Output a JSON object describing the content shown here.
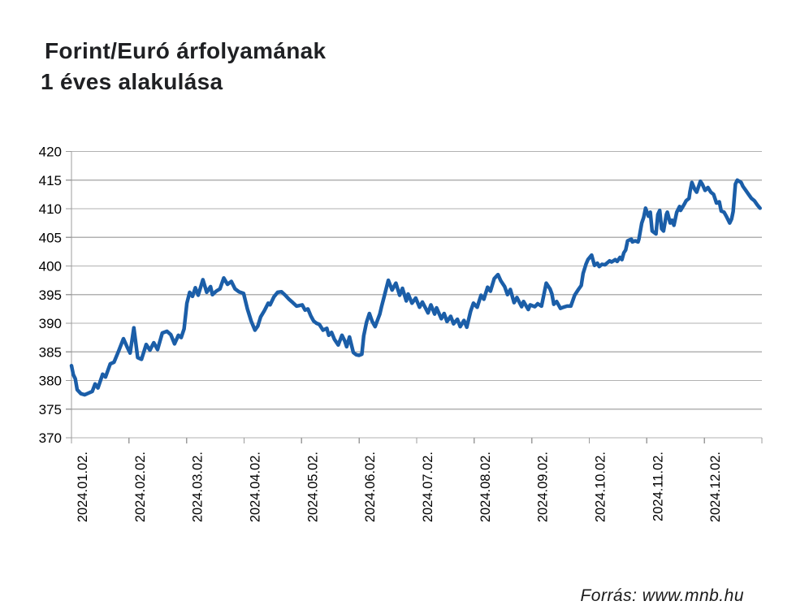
{
  "header": {
    "title_line1": "Forint/Euró árfolyamának",
    "title_line2": "1 éves alakulása"
  },
  "footer": {
    "source": "Forrás: www.mnb.hu"
  },
  "chart_data": {
    "type": "line",
    "title": "Forint/Euró árfolyamának 1 éves alakulása",
    "xlabel": "",
    "ylabel": "",
    "ylim": [
      370,
      420
    ],
    "y_ticks": [
      370,
      375,
      380,
      385,
      390,
      395,
      400,
      405,
      410,
      415,
      420
    ],
    "x_tick_labels": [
      "2024.01.02.",
      "2024.02.02.",
      "2024.03.02.",
      "2024.04.02.",
      "2024.05.02.",
      "2024.06.02.",
      "2024.07.02.",
      "2024.08.02.",
      "2024.09.02.",
      "2024.10.02.",
      "2024.11.02.",
      "2024.12.02."
    ],
    "x_range_days": [
      0,
      365
    ],
    "grid": "horizontal",
    "legend": "none",
    "line_color": "#1b5ea8",
    "grid_color": "#b2b2b2",
    "axis_color": "#9c9c9c",
    "tick_label_color": "#000000",
    "series": [
      {
        "points": [
          [
            0,
            382.6
          ],
          [
            1,
            381.0
          ],
          [
            2,
            380.3
          ],
          [
            3,
            378.4
          ],
          [
            5,
            377.7
          ],
          [
            7,
            377.5
          ],
          [
            9,
            377.8
          ],
          [
            11,
            378.1
          ],
          [
            12.5,
            379.4
          ],
          [
            14,
            378.7
          ],
          [
            16.5,
            381.1
          ],
          [
            18,
            380.6
          ],
          [
            20.5,
            382.9
          ],
          [
            22.5,
            383.2
          ],
          [
            25,
            385.2
          ],
          [
            27.5,
            387.3
          ],
          [
            29.5,
            385.8
          ],
          [
            31,
            384.8
          ],
          [
            33,
            389.2
          ],
          [
            35,
            384.0
          ],
          [
            37,
            383.7
          ],
          [
            39.5,
            386.3
          ],
          [
            41.5,
            385.3
          ],
          [
            43.5,
            386.6
          ],
          [
            45.5,
            385.4
          ],
          [
            48,
            388.3
          ],
          [
            50.5,
            388.6
          ],
          [
            52.5,
            388.0
          ],
          [
            54.5,
            386.4
          ],
          [
            56.5,
            387.9
          ],
          [
            58,
            387.5
          ],
          [
            59.5,
            389.0
          ],
          [
            61,
            393.5
          ],
          [
            62.5,
            395.4
          ],
          [
            64,
            394.7
          ],
          [
            65.5,
            396.2
          ],
          [
            67,
            394.9
          ],
          [
            69.5,
            397.6
          ],
          [
            71.5,
            395.4
          ],
          [
            73.5,
            396.4
          ],
          [
            74.5,
            395.0
          ],
          [
            76.5,
            395.6
          ],
          [
            78.5,
            396.0
          ],
          [
            80.5,
            397.9
          ],
          [
            82.5,
            396.8
          ],
          [
            84.5,
            397.3
          ],
          [
            86.5,
            396.0
          ],
          [
            88.5,
            395.5
          ],
          [
            91,
            395.2
          ],
          [
            93,
            392.5
          ],
          [
            95,
            390.4
          ],
          [
            97,
            388.8
          ],
          [
            98.5,
            389.5
          ],
          [
            100,
            391.1
          ],
          [
            102,
            392.2
          ],
          [
            104,
            393.5
          ],
          [
            105,
            393.2
          ],
          [
            107,
            394.6
          ],
          [
            109,
            395.4
          ],
          [
            111,
            395.5
          ],
          [
            113,
            394.9
          ],
          [
            115,
            394.2
          ],
          [
            117,
            393.6
          ],
          [
            119,
            393.0
          ],
          [
            122,
            393.2
          ],
          [
            123.5,
            392.3
          ],
          [
            125,
            392.5
          ],
          [
            126.5,
            391.3
          ],
          [
            128,
            390.4
          ],
          [
            129.5,
            390.0
          ],
          [
            131,
            389.8
          ],
          [
            133,
            388.8
          ],
          [
            135,
            389.1
          ],
          [
            136,
            387.9
          ],
          [
            137.5,
            388.4
          ],
          [
            139,
            387.2
          ],
          [
            141,
            386.2
          ],
          [
            143,
            387.9
          ],
          [
            144.5,
            386.9
          ],
          [
            145.5,
            385.9
          ],
          [
            147,
            387.6
          ],
          [
            149,
            384.9
          ],
          [
            150.5,
            384.5
          ],
          [
            152,
            384.4
          ],
          [
            153.5,
            384.6
          ],
          [
            154.5,
            387.8
          ],
          [
            156,
            390.2
          ],
          [
            157.5,
            391.7
          ],
          [
            159,
            390.3
          ],
          [
            160.5,
            389.4
          ],
          [
            163,
            391.6
          ],
          [
            164,
            393.0
          ],
          [
            165.5,
            394.9
          ],
          [
            167.5,
            397.5
          ],
          [
            169.5,
            395.8
          ],
          [
            171.5,
            397.0
          ],
          [
            173.5,
            394.9
          ],
          [
            175,
            396.1
          ],
          [
            177,
            393.9
          ],
          [
            178,
            395.1
          ],
          [
            180,
            393.5
          ],
          [
            182,
            394.4
          ],
          [
            184,
            392.8
          ],
          [
            185.5,
            393.7
          ],
          [
            188.5,
            391.8
          ],
          [
            190,
            393.2
          ],
          [
            192,
            391.6
          ],
          [
            193,
            392.7
          ],
          [
            195.5,
            390.8
          ],
          [
            197,
            391.7
          ],
          [
            198.5,
            390.3
          ],
          [
            200.5,
            391.2
          ],
          [
            202,
            389.9
          ],
          [
            204,
            390.7
          ],
          [
            205.5,
            389.4
          ],
          [
            207.5,
            390.5
          ],
          [
            209,
            389.3
          ],
          [
            211,
            392.1
          ],
          [
            212.5,
            393.5
          ],
          [
            214.5,
            392.8
          ],
          [
            216.5,
            394.9
          ],
          [
            218,
            394.2
          ],
          [
            220,
            396.3
          ],
          [
            221.5,
            395.6
          ],
          [
            223.5,
            397.8
          ],
          [
            225.5,
            398.5
          ],
          [
            227,
            397.4
          ],
          [
            229,
            396.4
          ],
          [
            230.5,
            395.0
          ],
          [
            232,
            395.9
          ],
          [
            234,
            393.6
          ],
          [
            235.5,
            394.5
          ],
          [
            238,
            392.9
          ],
          [
            239,
            393.8
          ],
          [
            241.5,
            392.4
          ],
          [
            242.5,
            393.2
          ],
          [
            245,
            392.9
          ],
          [
            246.5,
            393.4
          ],
          [
            248.5,
            393.0
          ],
          [
            251,
            397.0
          ],
          [
            253,
            396.0
          ],
          [
            254,
            395.1
          ],
          [
            255,
            393.3
          ],
          [
            256.5,
            393.8
          ],
          [
            258.5,
            392.6
          ],
          [
            260,
            392.8
          ],
          [
            262,
            393.0
          ],
          [
            264,
            393.0
          ],
          [
            266,
            394.9
          ],
          [
            268,
            395.9
          ],
          [
            269.5,
            396.6
          ],
          [
            270.5,
            398.7
          ],
          [
            272,
            400.3
          ],
          [
            273,
            401.1
          ],
          [
            275,
            401.9
          ],
          [
            276.5,
            400.1
          ],
          [
            278,
            400.5
          ],
          [
            279,
            399.9
          ],
          [
            280.5,
            400.3
          ],
          [
            282,
            400.2
          ],
          [
            284.5,
            400.9
          ],
          [
            285.5,
            400.7
          ],
          [
            287.5,
            401.1
          ],
          [
            288.5,
            400.8
          ],
          [
            290,
            401.5
          ],
          [
            291,
            401.1
          ],
          [
            292,
            402.3
          ],
          [
            293,
            402.8
          ],
          [
            294,
            404.4
          ],
          [
            296,
            404.7
          ],
          [
            296.5,
            404.2
          ],
          [
            298,
            404.4
          ],
          [
            299.5,
            404.2
          ],
          [
            300,
            404.7
          ],
          [
            301.5,
            407.5
          ],
          [
            302.5,
            408.5
          ],
          [
            303.5,
            410.1
          ],
          [
            305,
            408.7
          ],
          [
            306,
            409.4
          ],
          [
            307,
            406.1
          ],
          [
            309,
            405.6
          ],
          [
            310,
            409.0
          ],
          [
            311,
            409.7
          ],
          [
            312,
            406.5
          ],
          [
            313,
            406.1
          ],
          [
            314.5,
            409.0
          ],
          [
            315,
            409.4
          ],
          [
            316.5,
            407.5
          ],
          [
            317.5,
            408.0
          ],
          [
            318.5,
            407.1
          ],
          [
            320,
            409.4
          ],
          [
            321.5,
            410.4
          ],
          [
            322,
            409.7
          ],
          [
            324,
            410.8
          ],
          [
            325,
            411.4
          ],
          [
            326.5,
            411.8
          ],
          [
            327,
            413.0
          ],
          [
            328,
            414.6
          ],
          [
            329.5,
            413.4
          ],
          [
            330.5,
            412.9
          ],
          [
            332.5,
            414.8
          ],
          [
            333.5,
            414.3
          ],
          [
            335,
            413.2
          ],
          [
            336.5,
            413.7
          ],
          [
            338,
            412.9
          ],
          [
            339.5,
            412.5
          ],
          [
            341,
            411.0
          ],
          [
            342.5,
            411.2
          ],
          [
            343.5,
            409.6
          ],
          [
            345,
            409.4
          ],
          [
            346.5,
            408.5
          ],
          [
            348,
            407.5
          ],
          [
            349,
            408.2
          ],
          [
            349.8,
            409.5
          ],
          [
            351,
            414.3
          ],
          [
            352,
            415.0
          ],
          [
            354,
            414.6
          ],
          [
            355,
            413.9
          ],
          [
            356.5,
            413.2
          ],
          [
            358,
            412.5
          ],
          [
            359.5,
            411.8
          ],
          [
            361,
            411.4
          ],
          [
            362.5,
            410.7
          ],
          [
            364,
            410.1
          ]
        ]
      }
    ]
  }
}
